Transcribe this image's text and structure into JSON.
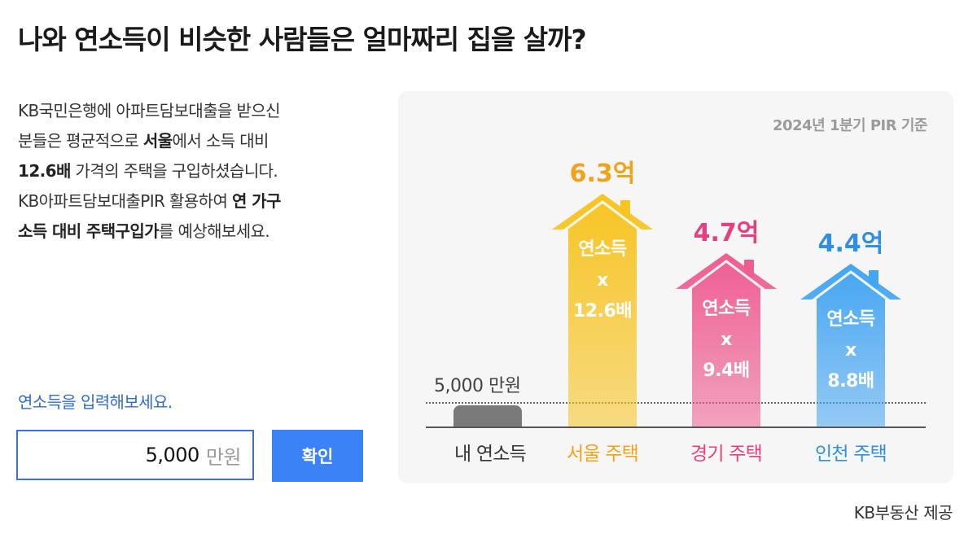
{
  "title": "나와 연소득이 비슷한 사람들은 얼마짜리 집을 살까?",
  "description": {
    "line1": "KB국민은행에 아파트담보대출을 받으신",
    "line2_pre": "분들은 평균적으로 ",
    "line2_bold": "서울",
    "line2_post": "에서 소득 대비",
    "line3_bold": "12.6배",
    "line3_post": " 가격의 주택을 구입하셨습니다.",
    "line4_pre": "KB아파트담보대출PIR 활용하여 ",
    "line4_bold": "연 가구",
    "line5_bold": "소득 대비 주택구입가",
    "line5_post": "를 예상해보세요."
  },
  "input": {
    "prompt": "연소득을 입력해보세요.",
    "value": "5,000",
    "unit": "만원",
    "confirm_label": "확인"
  },
  "chart_data": {
    "type": "bar",
    "note": "2024년 1분기 PIR 기준",
    "my_income": {
      "label": "내 연소득",
      "amount_label": "5,000 만원",
      "value": 5000,
      "unit": "만원"
    },
    "categories": [
      "서울 주택",
      "경기 주택",
      "인천 주택"
    ],
    "values": [
      6.3,
      4.7,
      4.4
    ],
    "value_labels": [
      "6.3억",
      "4.7억",
      "4.4억"
    ],
    "multipliers": [
      12.6,
      9.4,
      8.8
    ],
    "inner_top": "연소득",
    "inner_mid": "x",
    "inner_bottom": [
      "12.6배",
      "9.4배",
      "8.8배"
    ],
    "colors": [
      "#f7c422",
      "#ee5d92",
      "#44a5f2"
    ],
    "label_colors": [
      "#f0a21a",
      "#e63f80",
      "#2f8fe0"
    ]
  },
  "credit": "KB부동산 제공"
}
